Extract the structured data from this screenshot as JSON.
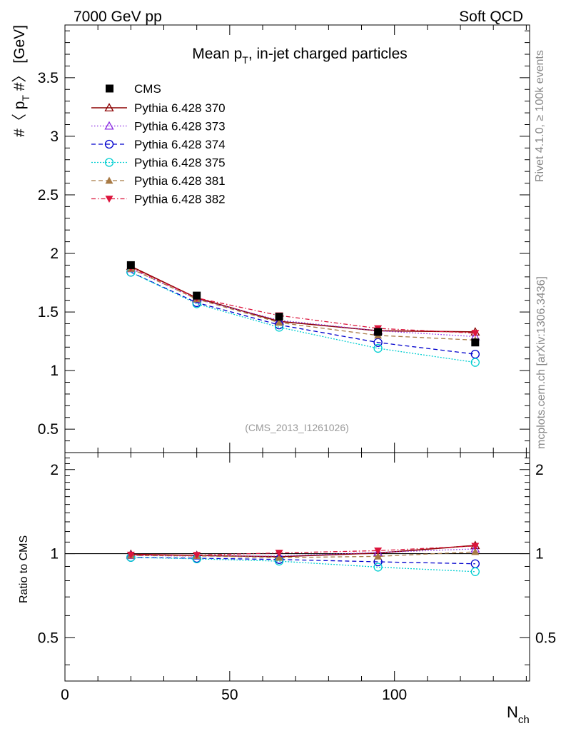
{
  "header": {
    "left": "7000 GeV pp",
    "right": "Soft QCD"
  },
  "side_labels": {
    "rivet": "Rivet 4.1.0, ≥ 100k events",
    "mcplots": "mcplots.cern.ch [arXiv:1306.3436]"
  },
  "chart_data": {
    "type": "line",
    "title_main": "Mean p",
    "title_sub": "T",
    "title_rest": ", in-jet charged particles",
    "analysis_tag": "(CMS_2013_I1261026)",
    "ylabel_parts": [
      "#〈 p",
      "T",
      " #〉 [GeV]"
    ],
    "xlabel_main": "N",
    "xlabel_sub": "ch",
    "ratio_ylabel": "Ratio to CMS",
    "xlim": [
      0,
      141
    ],
    "ylim": [
      0.3,
      3.95
    ],
    "ratio_ylim": [
      0.35,
      2.3
    ],
    "x_ticks": [
      0,
      50,
      100
    ],
    "y_ticks": [
      0.5,
      1,
      1.5,
      2,
      2.5,
      3,
      3.5
    ],
    "y_tick_labels": [
      "0.5",
      "1",
      "1.5",
      "2",
      "2.5",
      "3",
      "3.5"
    ],
    "ratio_ticks": [
      0.5,
      1,
      2
    ],
    "ratio_tick_labels": [
      "0.5",
      "1",
      "2"
    ],
    "x": [
      20,
      40,
      65,
      95,
      124.5
    ],
    "data": {
      "name": "CMS",
      "values": [
        1.9,
        1.64,
        1.46,
        1.33,
        1.24
      ],
      "errors": [
        0.02,
        0.02,
        0.02,
        0.02,
        0.03
      ]
    },
    "series": [
      {
        "name": "Pythia 6.428 370",
        "color": "#8b0000",
        "dash": "",
        "marker": "triangle-open",
        "values": [
          1.89,
          1.62,
          1.42,
          1.34,
          1.33
        ],
        "ratio": [
          0.995,
          0.985,
          0.975,
          1.005,
          1.07
        ]
      },
      {
        "name": "Pythia 6.428 373",
        "color": "#8a2be2",
        "dash": "1.5,2.5",
        "marker": "triangle-open",
        "values": [
          1.87,
          1.61,
          1.43,
          1.34,
          1.29
        ],
        "ratio": [
          0.985,
          0.98,
          0.98,
          1.01,
          1.04
        ]
      },
      {
        "name": "Pythia 6.428 374",
        "color": "#0000cd",
        "dash": "6,4",
        "marker": "circle-open",
        "values": [
          1.84,
          1.58,
          1.39,
          1.24,
          1.14
        ],
        "ratio": [
          0.97,
          0.963,
          0.953,
          0.935,
          0.92
        ]
      },
      {
        "name": "Pythia 6.428 375",
        "color": "#00ced1",
        "dash": "2,2",
        "marker": "circle-open",
        "values": [
          1.84,
          1.57,
          1.37,
          1.19,
          1.07
        ],
        "ratio": [
          0.97,
          0.958,
          0.94,
          0.895,
          0.862
        ]
      },
      {
        "name": "Pythia 6.428 381",
        "color": "#a87a45",
        "dash": "6,4",
        "marker": "triangle-filled",
        "values": [
          1.87,
          1.61,
          1.41,
          1.3,
          1.26
        ],
        "ratio": [
          0.985,
          0.982,
          0.968,
          0.978,
          1.015
        ]
      },
      {
        "name": "Pythia 6.428 382",
        "color": "#dc143c",
        "dash": "6,3,1.5,3",
        "marker": "triangle-down-filled",
        "values": [
          1.88,
          1.62,
          1.47,
          1.36,
          1.32
        ],
        "ratio": [
          0.99,
          0.988,
          1.006,
          1.025,
          1.065
        ]
      }
    ]
  }
}
